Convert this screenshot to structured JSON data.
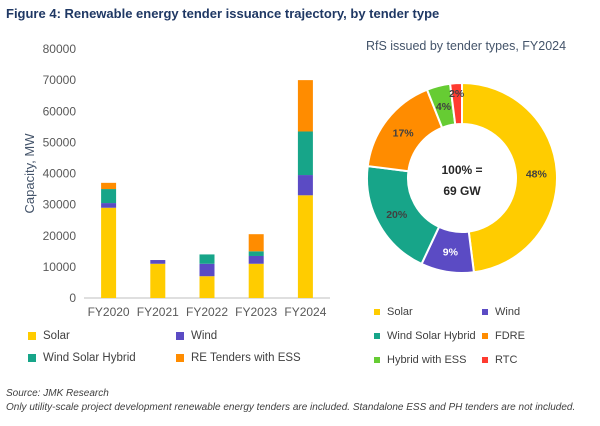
{
  "figure_title": "Figure 4: Renewable energy tender issuance trajectory, by tender type",
  "source": "Source: JMK Research",
  "note": "Only utility-scale project development renewable energy tenders are included. Standalone ESS and PH tenders are not included.",
  "chart_data": [
    {
      "type": "bar",
      "stacked": true,
      "title": "",
      "ylabel": "Capacity, MW",
      "xlabel": "",
      "ylim": [
        0,
        80000
      ],
      "yticks": [
        0,
        10000,
        20000,
        30000,
        40000,
        50000,
        60000,
        70000,
        80000
      ],
      "categories": [
        "FY2020",
        "FY2021",
        "FY2022",
        "FY2023",
        "FY2024"
      ],
      "series": [
        {
          "name": "Solar",
          "color": "#ffcc00",
          "values": [
            29000,
            11000,
            7000,
            11000,
            33000
          ]
        },
        {
          "name": "Wind",
          "color": "#5b4bc4",
          "values": [
            1500,
            1200,
            4000,
            2500,
            6500
          ]
        },
        {
          "name": "Wind Solar Hybrid",
          "color": "#17a589",
          "values": [
            4500,
            0,
            3000,
            1500,
            14000
          ]
        },
        {
          "name": "RE Tenders with ESS",
          "color": "#ff8c00",
          "values": [
            2000,
            0,
            0,
            5500,
            16500
          ]
        }
      ],
      "legend": [
        "Solar",
        "Wind",
        "Wind Solar Hybrid",
        "RE Tenders with ESS"
      ],
      "legend_position": "bottom",
      "grid": false
    },
    {
      "type": "pie",
      "donut": true,
      "title": "RfS issued by tender types, FY2024",
      "center_label": [
        "100% =",
        "69 GW"
      ],
      "slices": [
        {
          "name": "Solar",
          "value": 48,
          "label": "48%",
          "color": "#ffcc00"
        },
        {
          "name": "Wind",
          "value": 9,
          "label": "9%",
          "color": "#5b4bc4"
        },
        {
          "name": "Wind Solar Hybrid",
          "value": 20,
          "label": "20%",
          "color": "#17a589"
        },
        {
          "name": "FDRE",
          "value": 17,
          "label": "17%",
          "color": "#ff8c00"
        },
        {
          "name": "Hybrid with ESS",
          "value": 4,
          "label": "4%",
          "color": "#66cc33"
        },
        {
          "name": "RTC",
          "value": 2,
          "label": "2%",
          "color": "#ff3b30"
        }
      ],
      "legend": [
        "Solar",
        "Wind",
        "Wind Solar Hybrid",
        "FDRE",
        "Hybrid with ESS",
        "RTC"
      ],
      "legend_position": "bottom"
    }
  ]
}
